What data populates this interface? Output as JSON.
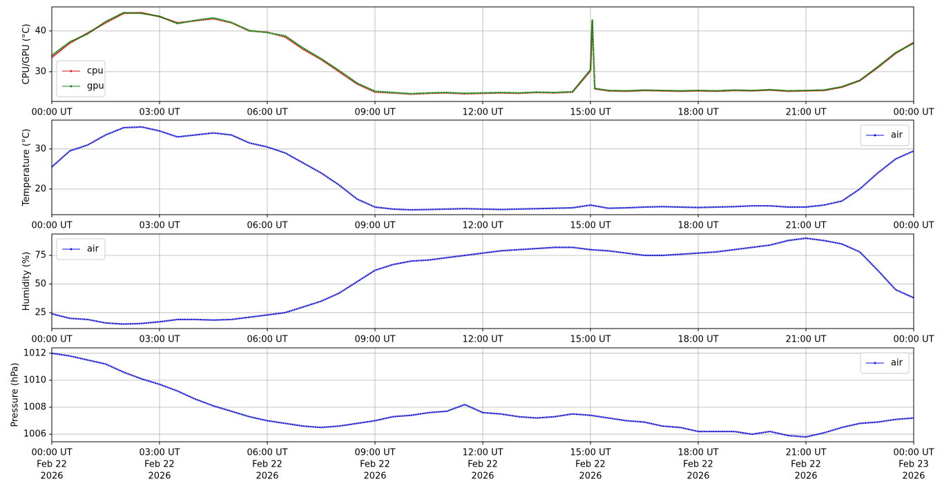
{
  "chart_data": [
    {
      "type": "line",
      "ylabel": "CPU/GPU (°C)",
      "x": [
        0,
        0.5,
        1,
        1.5,
        2,
        2.5,
        3,
        3.5,
        4,
        4.5,
        5,
        5.5,
        6,
        6.5,
        7,
        7.5,
        8,
        8.5,
        9,
        9.5,
        10,
        10.5,
        11,
        11.5,
        12,
        12.5,
        13,
        13.5,
        14,
        14.5,
        15,
        15.05,
        15.12,
        15.5,
        16,
        16.5,
        17,
        17.5,
        18,
        18.5,
        19,
        19.5,
        20,
        20.5,
        21,
        21.5,
        22,
        22.5,
        23,
        23.5,
        24
      ],
      "series": [
        {
          "name": "cpu",
          "color": "#e01010",
          "values": [
            33.5,
            37,
            39.5,
            42,
            44.3,
            44.5,
            43.5,
            42,
            42.5,
            43,
            42,
            40,
            39.7,
            38.5,
            35.5,
            33,
            30,
            27,
            25,
            24.8,
            24.5,
            24.7,
            24.8,
            24.6,
            24.7,
            24.8,
            24.7,
            24.9,
            24.8,
            25,
            30.2,
            42.5,
            25.8,
            25.3,
            25.2,
            25.4,
            25.3,
            25.2,
            25.3,
            25.2,
            25.4,
            25.3,
            25.5,
            25.2,
            25.3,
            25.4,
            26.2,
            27.8,
            31,
            34.5,
            37.2
          ]
        },
        {
          "name": "gpu",
          "color": "#108010",
          "values": [
            34,
            37.3,
            39.3,
            42.3,
            44.5,
            44.3,
            43.6,
            41.8,
            42.6,
            43.2,
            42.1,
            40.1,
            39.6,
            38.8,
            35.8,
            33.2,
            30.3,
            27.2,
            25.2,
            24.9,
            24.6,
            24.8,
            24.9,
            24.7,
            24.8,
            24.9,
            24.8,
            25,
            24.9,
            25.1,
            30.5,
            42.8,
            25.9,
            25.4,
            25.3,
            25.5,
            25.4,
            25.3,
            25.4,
            25.3,
            25.5,
            25.4,
            25.6,
            25.3,
            25.4,
            25.5,
            26.3,
            27.9,
            31.2,
            34.7,
            37
          ]
        }
      ],
      "xlim": [
        0,
        24
      ],
      "xticks": [
        {
          "value": 0,
          "label": "00:00 UT"
        },
        {
          "value": 3,
          "label": "03:00 UT"
        },
        {
          "value": 6,
          "label": "06:00 UT"
        },
        {
          "value": 9,
          "label": "09:00 UT"
        },
        {
          "value": 12,
          "label": "12:00 UT"
        },
        {
          "value": 15,
          "label": "15:00 UT"
        },
        {
          "value": 18,
          "label": "18:00 UT"
        },
        {
          "value": 21,
          "label": "21:00 UT"
        },
        {
          "value": 24,
          "label": "00:00 UT"
        }
      ],
      "ylim": [
        22.7,
        45.9
      ],
      "yticks": [
        30,
        40
      ],
      "grid": true,
      "legend": "lower left"
    },
    {
      "type": "line",
      "ylabel": "Temperature (°C)",
      "x": [
        0,
        0.5,
        1,
        1.5,
        2,
        2.5,
        3,
        3.5,
        4,
        4.5,
        5,
        5.5,
        6,
        6.5,
        7,
        7.5,
        8,
        8.5,
        9,
        9.5,
        10,
        10.5,
        11,
        11.5,
        12,
        12.5,
        13,
        13.5,
        14,
        14.5,
        15,
        15.5,
        16,
        16.5,
        17,
        17.5,
        18,
        18.5,
        19,
        19.5,
        20,
        20.5,
        21,
        21.5,
        22,
        22.5,
        23,
        23.5,
        24
      ],
      "series": [
        {
          "name": "air",
          "color": "#0a0adc",
          "values": [
            25.5,
            29.5,
            31,
            33.5,
            35.3,
            35.5,
            34.5,
            33,
            33.5,
            34,
            33.5,
            31.5,
            30.5,
            29,
            26.5,
            24,
            21,
            17.5,
            15.5,
            15,
            14.8,
            14.9,
            15,
            15.1,
            15,
            14.9,
            15,
            15.1,
            15.2,
            15.3,
            16,
            15.2,
            15.3,
            15.5,
            15.6,
            15.5,
            15.4,
            15.5,
            15.6,
            15.8,
            15.8,
            15.5,
            15.5,
            16,
            17,
            20,
            24,
            27.5,
            29.5
          ]
        }
      ],
      "xlim": [
        0,
        24
      ],
      "xticks": [
        {
          "value": 0,
          "label": "00:00 UT"
        },
        {
          "value": 3,
          "label": "03:00 UT"
        },
        {
          "value": 6,
          "label": "06:00 UT"
        },
        {
          "value": 9,
          "label": "09:00 UT"
        },
        {
          "value": 12,
          "label": "12:00 UT"
        },
        {
          "value": 15,
          "label": "15:00 UT"
        },
        {
          "value": 18,
          "label": "18:00 UT"
        },
        {
          "value": 21,
          "label": "21:00 UT"
        },
        {
          "value": 24,
          "label": "00:00 UT"
        }
      ],
      "ylim": [
        13.6,
        37.2
      ],
      "yticks": [
        20,
        30
      ],
      "grid": true,
      "legend": "upper right"
    },
    {
      "type": "line",
      "ylabel": "Humidity (%)",
      "x": [
        0,
        0.5,
        1,
        1.5,
        2,
        2.5,
        3,
        3.5,
        4,
        4.5,
        5,
        5.5,
        6,
        6.5,
        7,
        7.5,
        8,
        8.5,
        9,
        9.5,
        10,
        10.5,
        11,
        11.5,
        12,
        12.5,
        13,
        13.5,
        14,
        14.5,
        15,
        15.5,
        16,
        16.5,
        17,
        17.5,
        18,
        18.5,
        19,
        19.5,
        20,
        20.5,
        21,
        21.5,
        22,
        22.5,
        23,
        23.5,
        24
      ],
      "series": [
        {
          "name": "air",
          "color": "#0a0adc",
          "values": [
            24,
            20,
            19,
            16,
            15,
            15.5,
            17,
            19,
            19,
            18.5,
            19,
            21,
            23,
            25,
            30,
            35,
            42,
            52,
            62,
            67,
            70,
            71,
            73,
            75,
            77,
            79,
            80,
            81,
            82,
            82,
            80,
            79,
            77,
            75,
            75,
            76,
            77,
            78,
            80,
            82,
            84,
            88,
            90,
            88,
            85,
            78,
            62,
            45,
            38
          ]
        }
      ],
      "xlim": [
        0,
        24
      ],
      "xticks": [
        {
          "value": 0,
          "label": "00:00 UT"
        },
        {
          "value": 3,
          "label": "03:00 UT"
        },
        {
          "value": 6,
          "label": "06:00 UT"
        },
        {
          "value": 9,
          "label": "09:00 UT"
        },
        {
          "value": 12,
          "label": "12:00 UT"
        },
        {
          "value": 15,
          "label": "15:00 UT"
        },
        {
          "value": 18,
          "label": "18:00 UT"
        },
        {
          "value": 21,
          "label": "21:00 UT"
        },
        {
          "value": 24,
          "label": "00:00 UT"
        }
      ],
      "ylim": [
        11.1,
        93.7
      ],
      "yticks": [
        25,
        50,
        75
      ],
      "grid": true,
      "legend": "upper left"
    },
    {
      "type": "line",
      "ylabel": "Pressure (hPa)",
      "x": [
        0,
        0.5,
        1,
        1.5,
        2,
        2.5,
        3,
        3.5,
        4,
        4.5,
        5,
        5.5,
        6,
        6.5,
        7,
        7.5,
        8,
        8.5,
        9,
        9.5,
        10,
        10.5,
        11,
        11.5,
        12,
        12.5,
        13,
        13.5,
        14,
        14.5,
        15,
        15.5,
        16,
        16.5,
        17,
        17.5,
        18,
        18.5,
        19,
        19.5,
        20,
        20.5,
        21,
        21.5,
        22,
        22.5,
        23,
        23.5,
        24
      ],
      "series": [
        {
          "name": "air",
          "color": "#0a0adc",
          "values": [
            1012,
            1011.8,
            1011.5,
            1011.2,
            1010.6,
            1010.1,
            1009.7,
            1009.2,
            1008.6,
            1008.1,
            1007.7,
            1007.3,
            1007,
            1006.8,
            1006.6,
            1006.5,
            1006.6,
            1006.8,
            1007,
            1007.3,
            1007.4,
            1007.6,
            1007.7,
            1008.2,
            1007.6,
            1007.5,
            1007.3,
            1007.2,
            1007.3,
            1007.5,
            1007.4,
            1007.2,
            1007,
            1006.9,
            1006.6,
            1006.5,
            1006.2,
            1006.2,
            1006.2,
            1006,
            1006.2,
            1005.9,
            1005.8,
            1006.1,
            1006.5,
            1006.8,
            1006.9,
            1007.1,
            1007.2
          ]
        }
      ],
      "xlim": [
        0,
        24
      ],
      "xticks": [
        {
          "value": 0,
          "label": [
            "00:00 UT",
            "Feb 22",
            "2026"
          ]
        },
        {
          "value": 3,
          "label": [
            "03:00 UT",
            "Feb 22",
            "2026"
          ]
        },
        {
          "value": 6,
          "label": [
            "06:00 UT",
            "Feb 22",
            "2026"
          ]
        },
        {
          "value": 9,
          "label": [
            "09:00 UT",
            "Feb 22",
            "2026"
          ]
        },
        {
          "value": 12,
          "label": [
            "12:00 UT",
            "Feb 22",
            "2026"
          ]
        },
        {
          "value": 15,
          "label": [
            "15:00 UT",
            "Feb 22",
            "2026"
          ]
        },
        {
          "value": 18,
          "label": [
            "18:00 UT",
            "Feb 22",
            "2026"
          ]
        },
        {
          "value": 21,
          "label": [
            "21:00 UT",
            "Feb 22",
            "2026"
          ]
        },
        {
          "value": 24,
          "label": [
            "00:00 UT",
            "Feb 23",
            "2026"
          ]
        }
      ],
      "ylim": [
        1005.44,
        1012.4
      ],
      "yticks": [
        1006,
        1008,
        1010,
        1012
      ],
      "grid": true,
      "legend": "upper right"
    }
  ]
}
